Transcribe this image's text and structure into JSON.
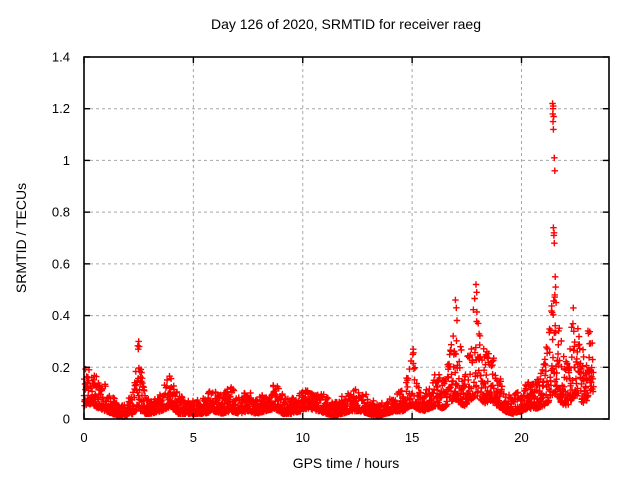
{
  "figure": {
    "background_color": "#ffffff",
    "border_color": "#000000",
    "grid_color": "#a8a8a8",
    "text_color": "#000000"
  },
  "chart_data": {
    "type": "scatter",
    "title": "Day 126 of 2020, SRMTID for receiver raeg",
    "xlabel": "GPS time / hours",
    "ylabel": "SRMTID / TECUs",
    "xlim": [
      0,
      24
    ],
    "ylim": [
      0,
      1.4
    ],
    "xticks": [
      0,
      5,
      10,
      15,
      20
    ],
    "yticks": [
      0,
      0.2,
      0.4,
      0.6,
      0.8,
      1,
      1.2,
      1.4
    ],
    "grid": true,
    "legend": "none",
    "marker": {
      "shape": "plus",
      "color": "#ff0000",
      "size": 6.5,
      "stroke": 1.4
    },
    "series": [
      {
        "name": "SRMTID",
        "sampling": {
          "t_start": 0,
          "t_end": 23.3,
          "dt": 0.01,
          "seed": 126,
          "skew": 2
        },
        "envelope": [
          [
            0.0,
            0.05,
            0.21
          ],
          [
            0.2,
            0.06,
            0.2
          ],
          [
            0.4,
            0.05,
            0.17
          ],
          [
            0.7,
            0.04,
            0.19
          ],
          [
            1.0,
            0.03,
            0.13
          ],
          [
            1.3,
            0.02,
            0.09
          ],
          [
            1.6,
            0.01,
            0.06
          ],
          [
            2.0,
            0.01,
            0.07
          ],
          [
            2.25,
            0.02,
            0.12
          ],
          [
            2.45,
            0.04,
            0.3
          ],
          [
            2.6,
            0.03,
            0.2
          ],
          [
            2.8,
            0.02,
            0.09
          ],
          [
            3.1,
            0.02,
            0.07
          ],
          [
            3.5,
            0.03,
            0.11
          ],
          [
            3.8,
            0.04,
            0.18
          ],
          [
            4.05,
            0.04,
            0.17
          ],
          [
            4.3,
            0.02,
            0.1
          ],
          [
            4.7,
            0.02,
            0.07
          ],
          [
            5.1,
            0.02,
            0.07
          ],
          [
            5.5,
            0.02,
            0.09
          ],
          [
            5.9,
            0.03,
            0.12
          ],
          [
            6.3,
            0.02,
            0.09
          ],
          [
            6.7,
            0.03,
            0.13
          ],
          [
            7.1,
            0.02,
            0.09
          ],
          [
            7.5,
            0.03,
            0.11
          ],
          [
            7.9,
            0.02,
            0.08
          ],
          [
            8.3,
            0.03,
            0.1
          ],
          [
            8.7,
            0.04,
            0.14
          ],
          [
            9.1,
            0.02,
            0.1
          ],
          [
            9.5,
            0.02,
            0.08
          ],
          [
            9.9,
            0.03,
            0.1
          ],
          [
            10.3,
            0.04,
            0.12
          ],
          [
            10.7,
            0.03,
            0.11
          ],
          [
            11.1,
            0.02,
            0.09
          ],
          [
            11.4,
            0.01,
            0.06
          ],
          [
            11.8,
            0.02,
            0.09
          ],
          [
            12.2,
            0.03,
            0.12
          ],
          [
            12.6,
            0.03,
            0.11
          ],
          [
            13.0,
            0.02,
            0.09
          ],
          [
            13.4,
            0.01,
            0.06
          ],
          [
            13.8,
            0.02,
            0.07
          ],
          [
            14.2,
            0.03,
            0.09
          ],
          [
            14.6,
            0.03,
            0.12
          ],
          [
            14.9,
            0.05,
            0.2
          ],
          [
            15.05,
            0.05,
            0.28
          ],
          [
            15.2,
            0.04,
            0.14
          ],
          [
            15.5,
            0.03,
            0.11
          ],
          [
            15.8,
            0.04,
            0.13
          ],
          [
            16.1,
            0.05,
            0.19
          ],
          [
            16.4,
            0.04,
            0.15
          ],
          [
            16.7,
            0.06,
            0.28
          ],
          [
            16.95,
            0.08,
            0.47
          ],
          [
            17.15,
            0.06,
            0.33
          ],
          [
            17.4,
            0.05,
            0.2
          ],
          [
            17.65,
            0.07,
            0.28
          ],
          [
            17.9,
            0.09,
            0.52
          ],
          [
            18.1,
            0.08,
            0.4
          ],
          [
            18.3,
            0.06,
            0.26
          ],
          [
            18.6,
            0.07,
            0.28
          ],
          [
            18.9,
            0.05,
            0.18
          ],
          [
            19.2,
            0.03,
            0.13
          ],
          [
            19.6,
            0.02,
            0.1
          ],
          [
            20.0,
            0.03,
            0.12
          ],
          [
            20.3,
            0.04,
            0.15
          ],
          [
            20.7,
            0.04,
            0.15
          ],
          [
            21.0,
            0.05,
            0.2
          ],
          [
            21.3,
            0.07,
            0.4
          ],
          [
            21.5,
            0.1,
            0.55
          ],
          [
            21.7,
            0.08,
            0.4
          ],
          [
            21.9,
            0.05,
            0.28
          ],
          [
            22.1,
            0.05,
            0.22
          ],
          [
            22.35,
            0.08,
            0.45
          ],
          [
            22.6,
            0.09,
            0.42
          ],
          [
            22.85,
            0.05,
            0.25
          ],
          [
            23.05,
            0.08,
            0.4
          ],
          [
            23.2,
            0.12,
            0.46
          ],
          [
            23.3,
            0.1,
            0.44
          ]
        ],
        "outliers": [
          [
            21.42,
            1.22
          ],
          [
            21.43,
            1.18
          ],
          [
            21.44,
            1.15
          ],
          [
            21.45,
            1.21
          ],
          [
            21.46,
            1.12
          ],
          [
            21.47,
            1.17
          ],
          [
            21.44,
            1.2
          ],
          [
            21.5,
            1.01
          ],
          [
            21.52,
            0.96
          ],
          [
            21.46,
            0.74
          ],
          [
            21.48,
            0.71
          ],
          [
            21.5,
            0.68
          ],
          [
            21.49,
            0.72
          ],
          [
            21.54,
            0.55
          ],
          [
            21.56,
            0.51
          ],
          [
            21.52,
            0.48
          ],
          [
            21.58,
            0.45
          ],
          [
            16.98,
            0.46
          ],
          [
            17.02,
            0.43
          ],
          [
            17.92,
            0.52
          ],
          [
            17.95,
            0.49
          ],
          [
            15.05,
            0.27
          ],
          [
            15.03,
            0.25
          ],
          [
            2.5,
            0.3
          ],
          [
            2.52,
            0.28
          ],
          [
            2.48,
            0.27
          ]
        ]
      }
    ]
  }
}
